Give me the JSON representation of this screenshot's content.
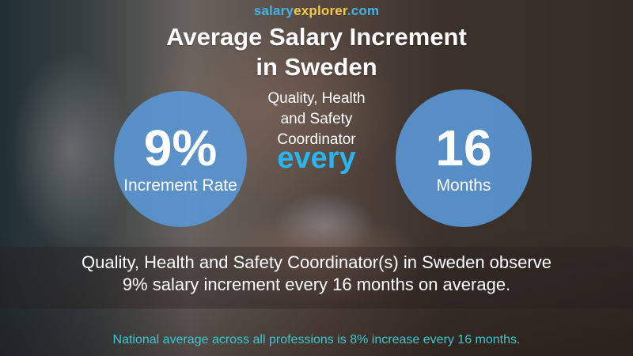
{
  "brand": {
    "part1": "salary",
    "part2": "explorer",
    "part3": ".com"
  },
  "title": {
    "line1": "Average Salary Increment",
    "line2": "in Sweden"
  },
  "job_title": {
    "line1": "Quality, Health",
    "line2": "and Safety",
    "line3": "Coordinator"
  },
  "increment": {
    "value": "9%",
    "label": "Increment Rate"
  },
  "connector": "every",
  "frequency": {
    "value": "16",
    "label": "Months"
  },
  "summary": {
    "line1": "Quality, Health and Safety Coordinator(s) in Sweden observe",
    "line2": "9% salary increment every 16 months on average."
  },
  "national_note": "National average across all professions is 8% increase every 16 months.",
  "colors": {
    "circle": "#5a96d2",
    "accent_blue": "#29b6f0",
    "brand_blue": "#42b4e6",
    "brand_yellow": "#f2c94c",
    "note_teal": "#3cc6cf"
  }
}
